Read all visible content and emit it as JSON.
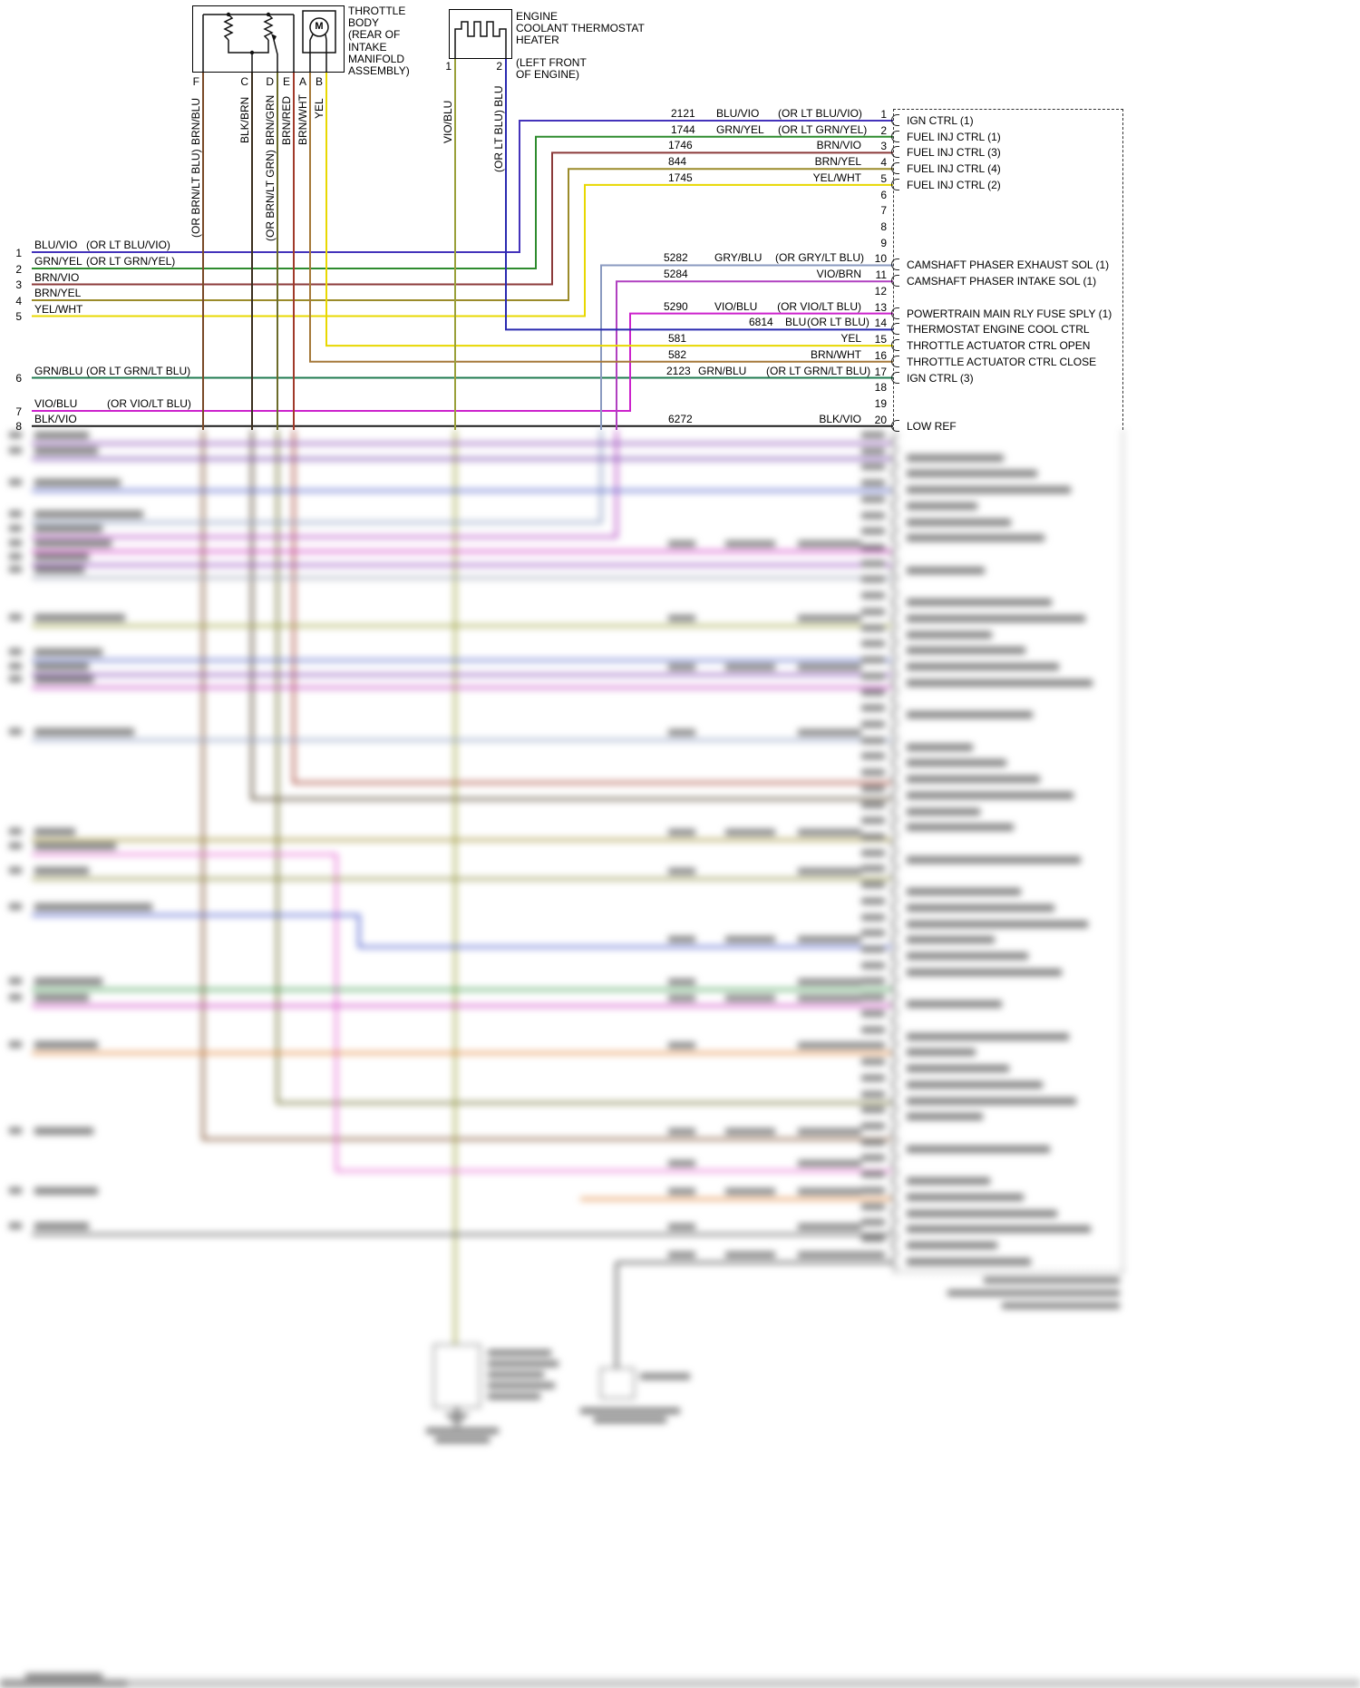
{
  "palette": {
    "blu_vio": "#4433bb",
    "grn_yel": "#2e8b2e",
    "brn_vio": "#8b3a3a",
    "brn_yel": "#9b8b2a",
    "yel": "#e8d800",
    "gry_blu": "#8a9ac0",
    "vio_brn": "#b040c0",
    "vio_blu": "#cc22cc",
    "blu": "#2a2ab0",
    "brn_wht": "#a5793a",
    "grn_blu": "#1f7a50",
    "blk_vio": "#1a1a1a",
    "brn_blu": "#7a4a28",
    "blk_brn": "#3a2e1e",
    "brn_grn": "#6b6b2a",
    "brn_red": "#a03a2a",
    "vio_blu_heater": "#9aa03a"
  },
  "components": {
    "throttle_body": {
      "label_lines": [
        "THROTTLE",
        "BODY",
        "(REAR OF",
        "INTAKE",
        "MANIFOLD",
        "ASSEMBLY)"
      ],
      "motor_symbol": "M",
      "pins": [
        {
          "pin": "F",
          "wire": "BRN/BLU",
          "alt": "(OR BRN/LT BLU)"
        },
        {
          "pin": "C",
          "wire": "BLK/BRN"
        },
        {
          "pin": "D",
          "wire": "BRN/GRN",
          "alt": "(OR BRN/LT GRN)"
        },
        {
          "pin": "E",
          "wire": "BRN/RED"
        },
        {
          "pin": "A",
          "wire": "BRN/WHT"
        },
        {
          "pin": "B",
          "wire": "YEL"
        }
      ]
    },
    "thermostat_heater": {
      "label_lines": [
        "ENGINE",
        "COOLANT THERMOSTAT",
        "HEATER"
      ],
      "location_lines": [
        "(LEFT FRONT",
        "OF ENGINE)"
      ],
      "pins": [
        {
          "pin": "1",
          "wire": "VIO/BLU"
        },
        {
          "pin": "2",
          "wire": "(OR LT BLU) BLU"
        }
      ]
    }
  },
  "left_wires": [
    {
      "num": "1",
      "name": "BLU/VIO",
      "alt": "(OR LT BLU/VIO)"
    },
    {
      "num": "2",
      "name": "GRN/YEL",
      "alt": "(OR LT GRN/YEL)"
    },
    {
      "num": "3",
      "name": "BRN/VIO"
    },
    {
      "num": "4",
      "name": "BRN/YEL"
    },
    {
      "num": "5",
      "name": "YEL/WHT"
    },
    {
      "num": "6",
      "name": "GRN/BLU",
      "alt": "(OR LT GRN/LT BLU)"
    },
    {
      "num": "7",
      "name": "VIO/BLU",
      "alt": "(OR VIO/LT BLU)"
    },
    {
      "num": "8",
      "name": "BLK/VIO"
    }
  ],
  "pcm": {
    "pins": [
      {
        "n": "1",
        "label": "IGN CTRL (1)",
        "wire": {
          "num": "2121",
          "name": "BLU/VIO",
          "alt": "(OR LT BLU/VIO)"
        }
      },
      {
        "n": "2",
        "label": "FUEL INJ CTRL (1)",
        "wire": {
          "num": "1744",
          "name": "GRN/YEL",
          "alt": "(OR LT GRN/YEL)"
        }
      },
      {
        "n": "3",
        "label": "FUEL INJ CTRL (3)",
        "wire": {
          "num": "1746",
          "name": "BRN/VIO"
        }
      },
      {
        "n": "4",
        "label": "FUEL INJ CTRL (4)",
        "wire": {
          "num": "844",
          "name": "BRN/YEL"
        }
      },
      {
        "n": "5",
        "label": "FUEL INJ CTRL (2)",
        "wire": {
          "num": "1745",
          "name": "YEL/WHT"
        }
      },
      {
        "n": "6"
      },
      {
        "n": "7"
      },
      {
        "n": "8"
      },
      {
        "n": "9"
      },
      {
        "n": "10",
        "label": "CAMSHAFT PHASER EXHAUST SOL (1)",
        "wire": {
          "num": "5282",
          "name": "GRY/BLU",
          "alt": "(OR GRY/LT BLU)"
        }
      },
      {
        "n": "11",
        "label": "CAMSHAFT PHASER INTAKE SOL (1)",
        "wire": {
          "num": "5284",
          "name": "VIO/BRN"
        }
      },
      {
        "n": "12"
      },
      {
        "n": "13",
        "label": "POWERTRAIN MAIN RLY FUSE SPLY (1)",
        "wire": {
          "num": "5290",
          "name": "VIO/BLU",
          "alt": "(OR VIO/LT BLU)"
        }
      },
      {
        "n": "14",
        "label": "THERMOSTAT ENGINE COOL CTRL",
        "wire": {
          "num": "6814",
          "name": "BLU",
          "alt": "(OR LT BLU)"
        }
      },
      {
        "n": "15",
        "label": "THROTTLE ACTUATOR CTRL OPEN",
        "wire": {
          "num": "581",
          "name": "YEL"
        }
      },
      {
        "n": "16",
        "label": "THROTTLE ACTUATOR CTRL CLOSE",
        "wire": {
          "num": "582",
          "name": "BRN/WHT"
        }
      },
      {
        "n": "17",
        "label": "IGN CTRL (3)",
        "wire": {
          "num": "2123",
          "name": "GRN/BLU",
          "alt": "(OR LT GRN/LT BLU)"
        }
      },
      {
        "n": "18"
      },
      {
        "n": "19"
      },
      {
        "n": "20",
        "label": "LOW REF",
        "wire": {
          "num": "6272",
          "name": "BLK/VIO"
        }
      }
    ]
  }
}
